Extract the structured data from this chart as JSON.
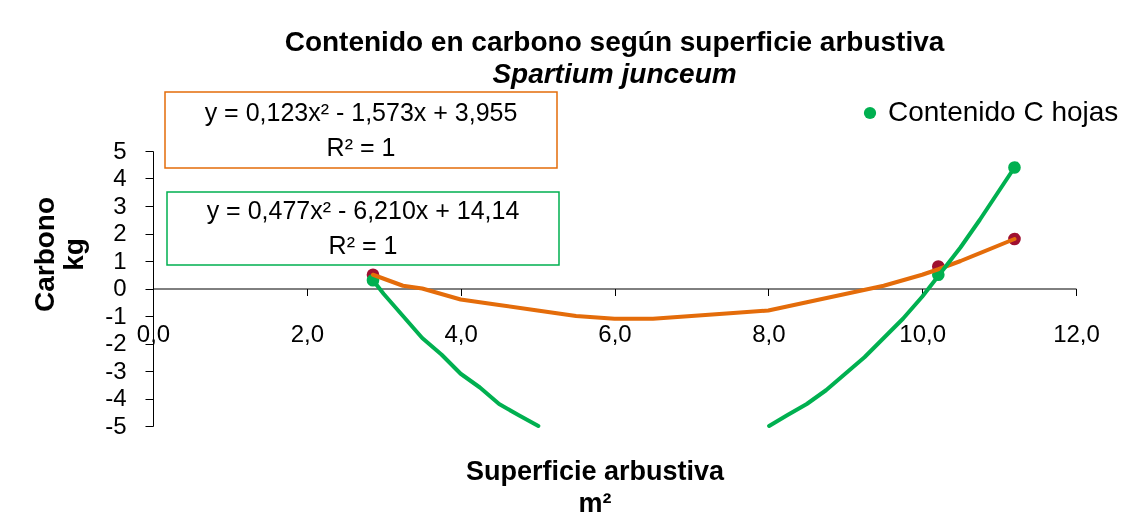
{
  "chart_data": {
    "type": "scatter",
    "title": "Contenido en carbono según superficie arbustiva",
    "subtitle": "Spartium junceum",
    "xlabel": "Superficie arbustiva\nm²",
    "ylabel": "Carbono\nkg",
    "xlim": [
      0,
      12
    ],
    "xticks": [
      {
        "value": 0,
        "label": "0,0"
      },
      {
        "value": 2,
        "label": "2,0"
      },
      {
        "value": 4,
        "label": "4,0"
      },
      {
        "value": 6,
        "label": "6,0"
      },
      {
        "value": 8,
        "label": "8,0"
      },
      {
        "value": 10,
        "label": "10,0"
      },
      {
        "value": 12,
        "label": "12,0"
      }
    ],
    "ylim": [
      -5,
      5
    ],
    "yticks": [
      -5,
      -4,
      -3,
      -2,
      -1,
      0,
      1,
      2,
      3,
      4,
      5
    ],
    "grid": false,
    "legend": "top right",
    "annotations": [
      "y = 0,123x² - 1,573x + 3,955\nR² = 1",
      "y = 0,477x² - 6,210x + 14,14\nR² = 1"
    ],
    "series": [
      {
        "marker": "circle",
        "color": "#a01030",
        "x": [
          2.86,
          10.21,
          11.2
        ],
        "values": [
          0.5,
          0.8,
          1.8
        ]
      },
      {
        "marker": "circle",
        "name": "Contenido C hojas",
        "color": "#00b050",
        "x": [
          2.86,
          10.21,
          11.2
        ],
        "values": [
          0.3,
          0.5,
          4.4
        ]
      },
      {
        "type": "line",
        "marker": "none",
        "color": "#e46c0a",
        "x": [
          2.86,
          3.25,
          3.5,
          4,
          4.5,
          5,
          5.5,
          6,
          6.5,
          7,
          7.5,
          8,
          8.5,
          9,
          9.5,
          10,
          10.21,
          10.5,
          11.2
        ],
        "values": [
          0.5,
          0.1,
          0.0,
          -0.4,
          -0.6,
          -0.8,
          -1.0,
          -1.1,
          -1.1,
          -1.0,
          -0.9,
          -0.8,
          -0.5,
          -0.2,
          0.1,
          0.5,
          0.7,
          1.0,
          1.8
        ]
      },
      {
        "type": "line",
        "marker": "none",
        "color": "#00b050",
        "x": [
          2.86,
          3.0,
          3.25,
          3.5,
          3.75,
          4.0,
          4.25,
          4.5,
          4.75,
          5.01,
          6.5,
          8.01,
          8.25,
          8.5,
          8.75,
          9.0,
          9.25,
          9.5,
          9.75,
          10.0,
          10.25,
          10.5,
          10.75,
          11.2
        ],
        "values": [
          0.3,
          -0.2,
          -1.0,
          -1.8,
          -2.4,
          -3.1,
          -3.6,
          -4.2,
          -4.6,
          -5.0,
          null,
          -5.0,
          -4.6,
          -4.2,
          -3.7,
          -3.1,
          -2.5,
          -1.8,
          -1.1,
          -0.3,
          0.6,
          1.5,
          2.5,
          4.4
        ]
      }
    ]
  }
}
